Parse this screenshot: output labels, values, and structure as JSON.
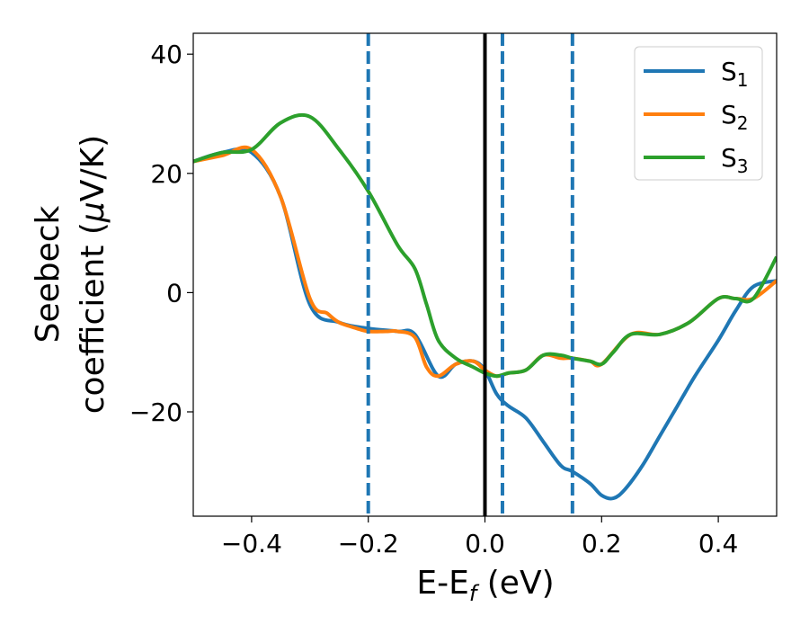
{
  "chart_data": {
    "type": "line",
    "title": "",
    "xlabel": "E-E",
    "xlabel_sub": "f",
    "xlabel_unit": " (eV)",
    "ylabel_line1": "Seebeck",
    "ylabel_line2_pre": "coefficient  (",
    "ylabel_line2_mu": "μ",
    "ylabel_line2_post": "V/K)",
    "xlim": [
      -0.5,
      0.5
    ],
    "ylim": [
      -37.5,
      43.5
    ],
    "xticks": [
      -0.4,
      -0.2,
      0.0,
      0.2,
      0.4
    ],
    "xtick_labels": [
      "−0.4",
      "−0.2",
      "0.0",
      "0.2",
      "0.4"
    ],
    "yticks": [
      -20,
      0,
      20,
      40
    ],
    "ytick_labels": [
      "−20",
      "0",
      "20",
      "40"
    ],
    "grid": false,
    "legend_position": "top-right",
    "vertical_lines": [
      {
        "x": -0.2,
        "style": "dashed",
        "color": "#1f77b4"
      },
      {
        "x": 0.0,
        "style": "solid",
        "color": "#000000"
      },
      {
        "x": 0.03,
        "style": "dashed",
        "color": "#1f77b4"
      },
      {
        "x": 0.15,
        "style": "dashed",
        "color": "#1f77b4"
      }
    ],
    "series": [
      {
        "name": "S",
        "name_sub": "1",
        "color": "#1f77b4",
        "x": [
          -0.5,
          -0.45,
          -0.4,
          -0.35,
          -0.3,
          -0.25,
          -0.2,
          -0.15,
          -0.12,
          -0.08,
          -0.05,
          -0.02,
          0.0,
          0.02,
          0.04,
          0.07,
          0.1,
          0.13,
          0.15,
          0.18,
          0.2,
          0.22,
          0.24,
          0.27,
          0.3,
          0.33,
          0.36,
          0.4,
          0.43,
          0.46,
          0.5
        ],
        "y": [
          22,
          23.5,
          23.5,
          16,
          -2,
          -5,
          -6,
          -6.5,
          -7,
          -14,
          -12,
          -11.5,
          -13,
          -17,
          -19,
          -21,
          -25,
          -29,
          -30,
          -32,
          -34,
          -34.5,
          -33,
          -29,
          -24,
          -19,
          -14,
          -8,
          -3,
          1,
          2
        ]
      },
      {
        "name": "S",
        "name_sub": "2",
        "color": "#ff7f0e",
        "x": [
          -0.5,
          -0.45,
          -0.4,
          -0.35,
          -0.3,
          -0.27,
          -0.25,
          -0.22,
          -0.2,
          -0.17,
          -0.15,
          -0.12,
          -0.1,
          -0.08,
          -0.05,
          -0.02,
          0.0,
          0.02,
          0.04,
          0.07,
          0.1,
          0.13,
          0.15,
          0.18,
          0.2,
          0.25,
          0.3,
          0.35,
          0.4,
          0.43,
          0.46,
          0.5
        ],
        "y": [
          22,
          23,
          24,
          16,
          -1,
          -3.5,
          -5,
          -6,
          -6.5,
          -6.5,
          -6.5,
          -7.5,
          -12.5,
          -14,
          -12,
          -11.5,
          -13,
          -14,
          -13.5,
          -13,
          -10.5,
          -11,
          -11,
          -11.5,
          -12,
          -7,
          -7,
          -5,
          -1,
          -1,
          -1,
          2
        ]
      },
      {
        "name": "S",
        "name_sub": "3",
        "color": "#2ca02c",
        "x": [
          -0.5,
          -0.45,
          -0.4,
          -0.35,
          -0.3,
          -0.25,
          -0.2,
          -0.15,
          -0.12,
          -0.1,
          -0.08,
          -0.05,
          -0.02,
          0.0,
          0.02,
          0.04,
          0.07,
          0.1,
          0.13,
          0.15,
          0.18,
          0.2,
          0.22,
          0.25,
          0.3,
          0.35,
          0.4,
          0.43,
          0.46,
          0.5
        ],
        "y": [
          22,
          23.5,
          24,
          28.5,
          29.5,
          24,
          17,
          8,
          4,
          -2,
          -8,
          -11,
          -12.5,
          -13.5,
          -14,
          -13.5,
          -13,
          -10.5,
          -10.5,
          -11,
          -11.5,
          -12,
          -10,
          -7,
          -7,
          -5,
          -1,
          -1,
          -1,
          6
        ]
      }
    ]
  }
}
